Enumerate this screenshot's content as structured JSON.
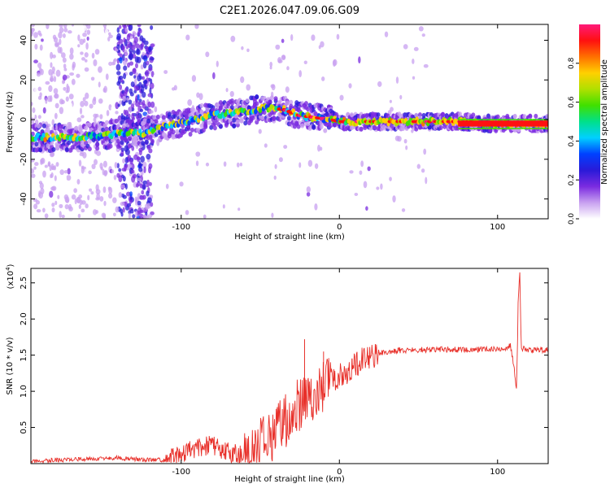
{
  "figure_title": "C2E1.2026.047.09.06.G09",
  "chart_data": [
    {
      "type": "heatmap",
      "title": "C2E1.2026.047.09.06.G09",
      "xlabel": "Height of straight line (km)",
      "ylabel": "Frequency (Hz)",
      "xlim": [
        -195,
        132
      ],
      "ylim": [
        -50,
        48
      ],
      "x_ticks": [
        -100,
        0,
        100
      ],
      "x_tick_labels": [
        "-100",
        "0",
        "100"
      ],
      "y_ticks": [
        -40,
        -20,
        0,
        20,
        40
      ],
      "y_tick_labels": [
        "-40",
        "-20",
        "0",
        "20",
        "40"
      ],
      "colorbar": {
        "label": "Normalized spectral amplitude",
        "range": [
          0,
          1
        ],
        "ticks": [
          0.0,
          0.2,
          0.4,
          0.6,
          0.8
        ],
        "tick_labels": [
          "0.0",
          "0.2",
          "0.4",
          "0.6",
          "0.8"
        ],
        "colors": [
          "#ffffff",
          "#c8a0f0",
          "#7a2be0",
          "#2a1ad8",
          "#0040ff",
          "#00d0ff",
          "#00e08a",
          "#40e000",
          "#b0e000",
          "#ffd000",
          "#ff7000",
          "#ff1010",
          "#ff1a7a"
        ]
      },
      "ridge": {
        "description": "dominant Doppler frequency trace",
        "x": [
          -195,
          -170,
          -150,
          -137,
          -125,
          -115,
          -100,
          -80,
          -60,
          -45,
          -35,
          -25,
          -15,
          -5,
          0,
          20,
          40,
          60,
          80,
          95,
          105,
          112,
          132
        ],
        "y": [
          -9,
          -9,
          -8,
          -7,
          -7,
          -4,
          -2,
          2,
          4,
          6,
          5,
          2,
          1,
          0,
          -1,
          -1,
          -1,
          -1,
          -1,
          -2,
          -2,
          -2,
          -2
        ]
      }
    },
    {
      "type": "line",
      "xlabel": "Height of straight line (km)",
      "ylabel": "SNR (10 * v/v)",
      "y_scale_label": "(x10",
      "y_scale_exponent": "4",
      "xlim": [
        -195,
        132
      ],
      "ylim": [
        0,
        2.7
      ],
      "x_ticks": [
        -100,
        0,
        100
      ],
      "x_tick_labels": [
        "-100",
        "0",
        "100"
      ],
      "y_ticks": [
        0.5,
        1.0,
        1.5,
        2.0,
        2.5
      ],
      "y_tick_labels": [
        "0.5",
        "1.0",
        "1.5",
        "2.0",
        "2.5"
      ],
      "color": "#e8302a",
      "series": [
        {
          "name": "SNR",
          "x": [
            -195,
            -180,
            -160,
            -140,
            -130,
            -110,
            -100,
            -90,
            -80,
            -70,
            -60,
            -50,
            -40,
            -35,
            -30,
            -25,
            -20,
            -15,
            -10,
            -5,
            0,
            5,
            10,
            20,
            30,
            40,
            50,
            60,
            70,
            80,
            90,
            100,
            105,
            108,
            110,
            112,
            113,
            114,
            115,
            118,
            125,
            132
          ],
          "y": [
            0.02,
            0.05,
            0.06,
            0.08,
            0.06,
            0.05,
            0.12,
            0.22,
            0.25,
            0.15,
            0.1,
            0.25,
            0.45,
            0.55,
            0.75,
            0.8,
            0.95,
            1.0,
            1.1,
            1.15,
            1.2,
            1.28,
            1.38,
            1.48,
            1.55,
            1.57,
            1.57,
            1.58,
            1.58,
            1.57,
            1.58,
            1.58,
            1.58,
            1.65,
            1.4,
            1.0,
            2.2,
            2.7,
            1.6,
            1.57,
            1.57,
            1.57
          ]
        }
      ],
      "spikes": [
        {
          "x": -22,
          "y": 1.72
        },
        {
          "x": -10,
          "y": 1.55
        },
        {
          "x": 8,
          "y": 1.45
        },
        {
          "x": 114,
          "y": 2.7
        }
      ]
    }
  ]
}
